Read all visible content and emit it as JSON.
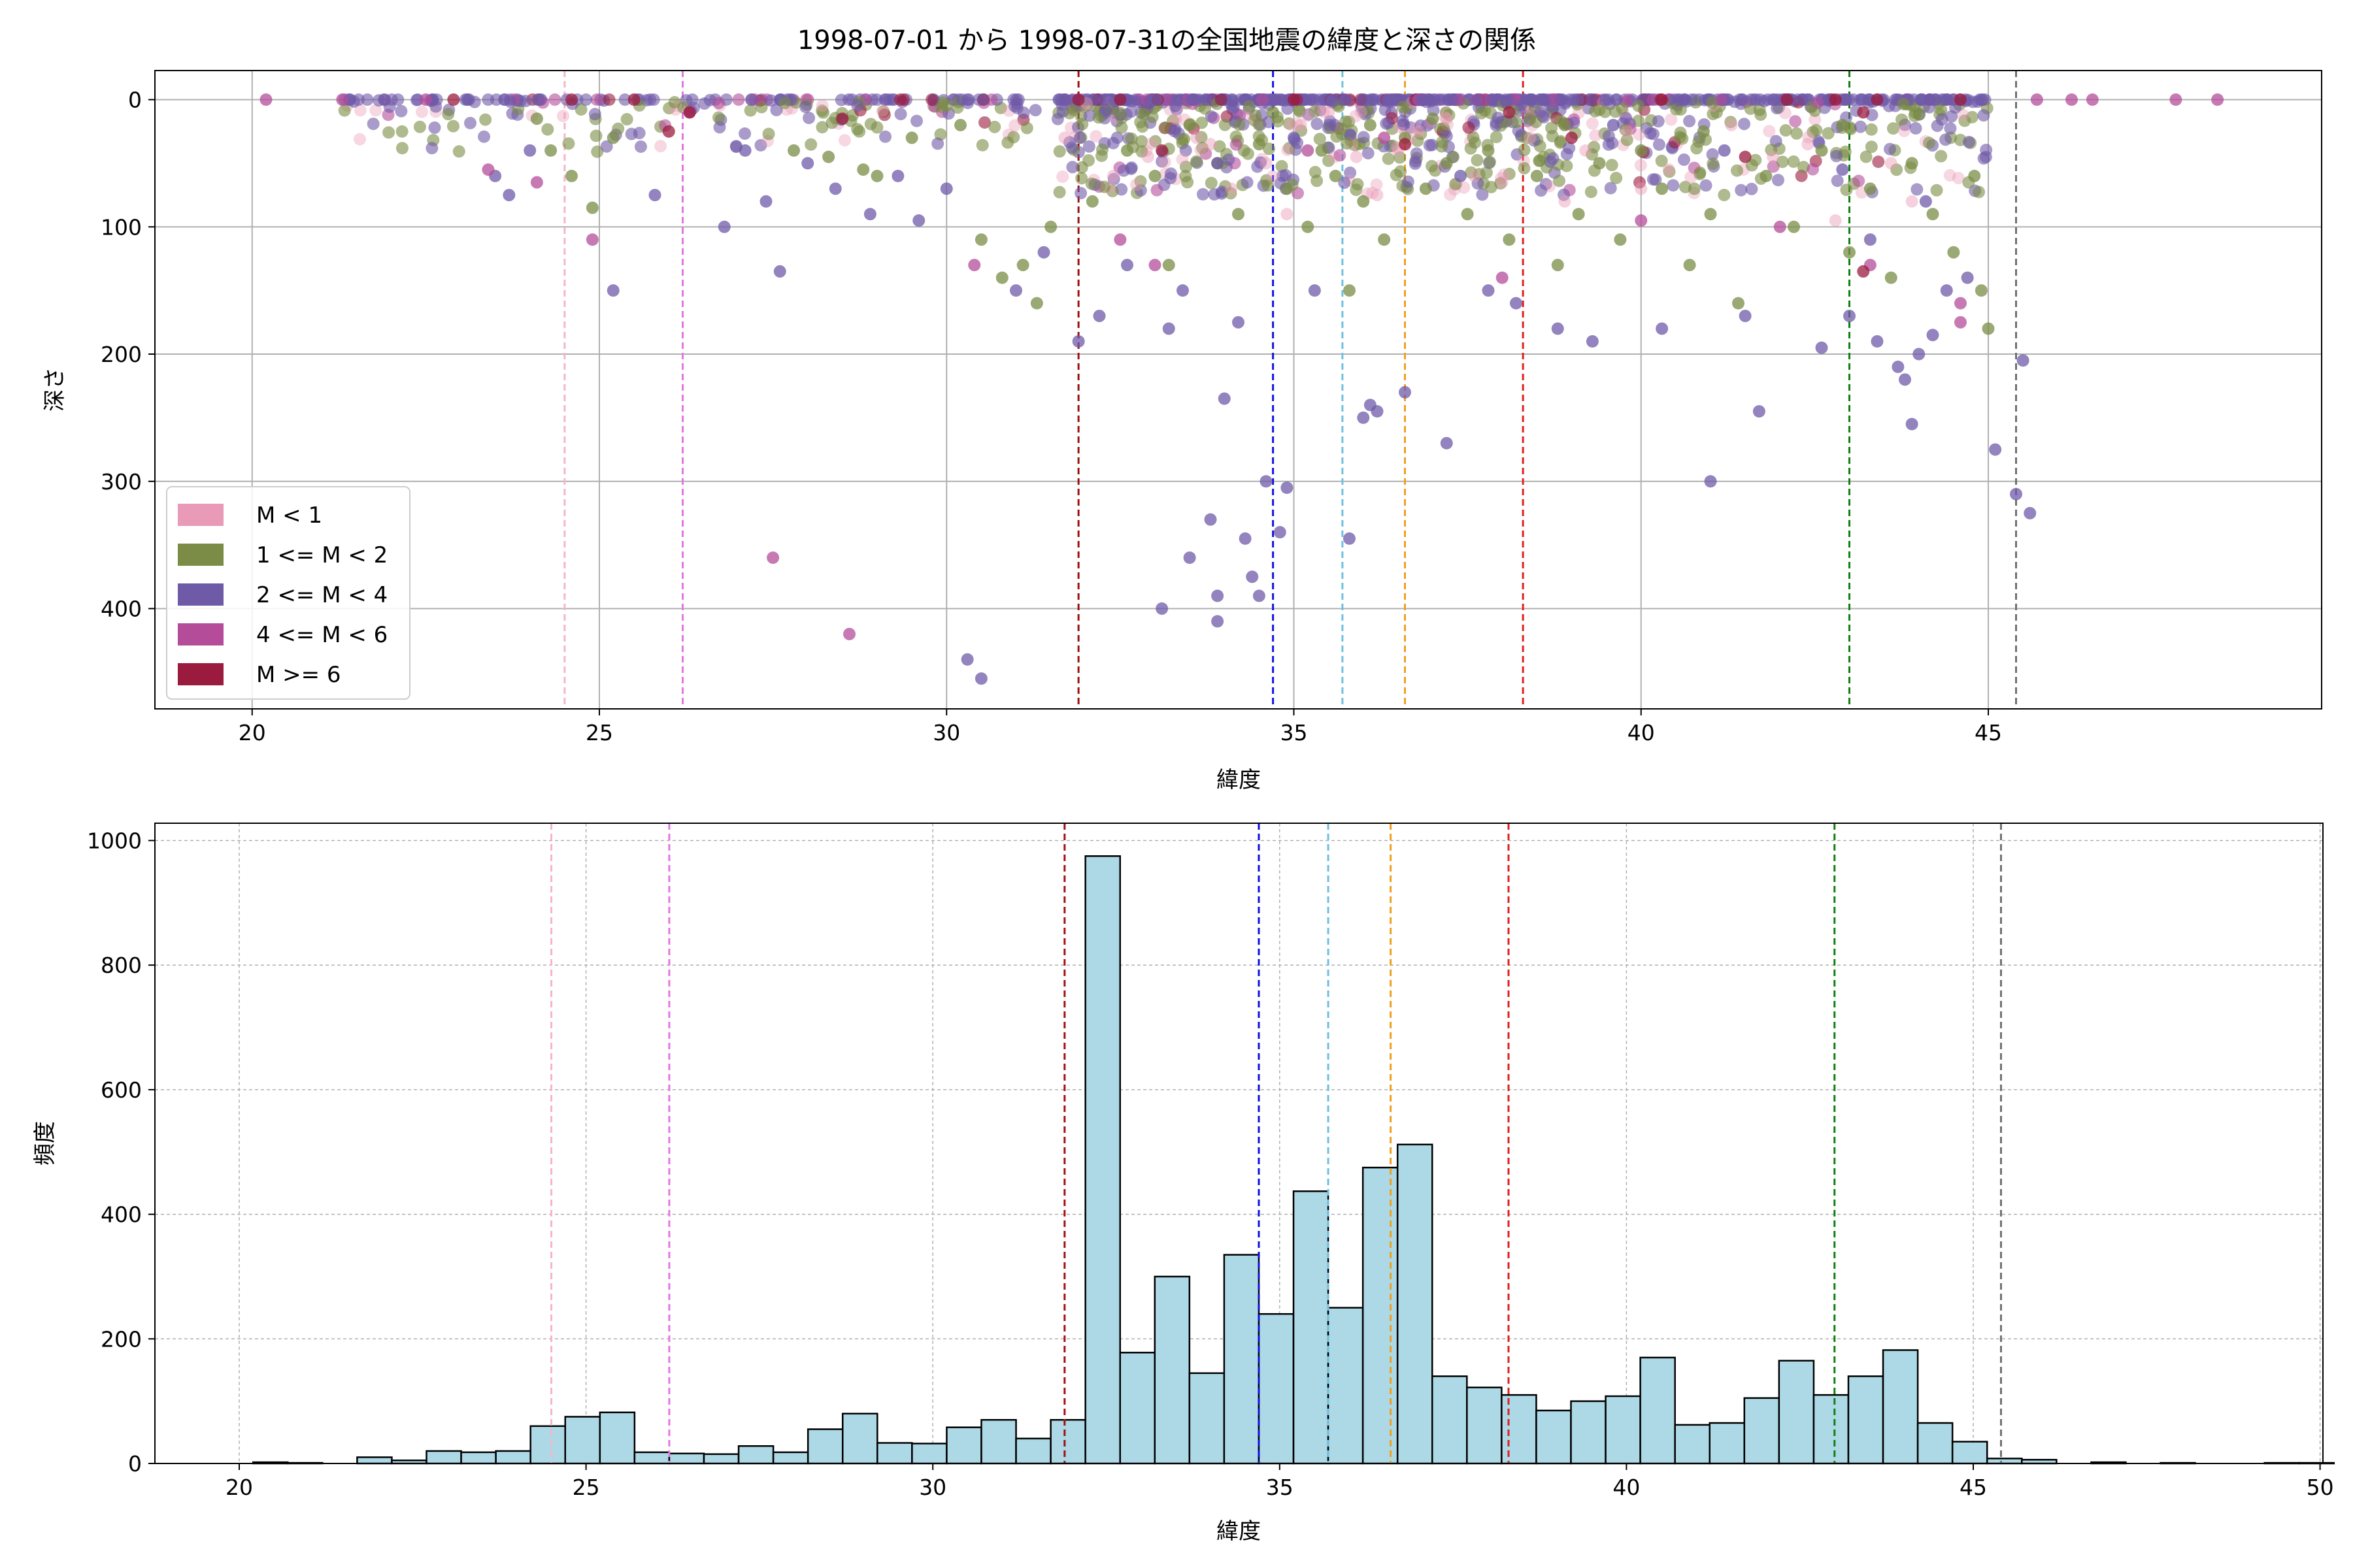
{
  "chart_data": [
    {
      "type": "scatter",
      "title": "1998-07-01 から 1998-07-31の全国地震の緯度と深さの関係",
      "xlabel": "緯度",
      "ylabel": "深さ",
      "xlim": [
        18.6,
        49.8
      ],
      "ylim": [
        0,
        480
      ],
      "y_inverted": true,
      "xticks": [
        20,
        25,
        30,
        35,
        40,
        45
      ],
      "yticks": [
        0,
        100,
        200,
        300,
        400
      ],
      "grid": true,
      "legend_position": "lower-left",
      "legend": [
        {
          "label": "M < 1",
          "color": "#e89ab6"
        },
        {
          "label": "1 <= M < 2",
          "color": "#7a8c45"
        },
        {
          "label": "2 <= M < 4",
          "color": "#6f5aa8"
        },
        {
          "label": "4 <= M < 6",
          "color": "#b44c9a"
        },
        {
          "label": "M >= 6",
          "color": "#9b1b3e"
        }
      ],
      "vlines": [
        {
          "x": 24.5,
          "color": "#f4b6c8"
        },
        {
          "x": 26.2,
          "color": "#e377e0"
        },
        {
          "x": 31.9,
          "color": "#a01010"
        },
        {
          "x": 34.7,
          "color": "#1010e0"
        },
        {
          "x": 35.7,
          "color": "#6fc0e0"
        },
        {
          "x": 36.6,
          "color": "#f0a020"
        },
        {
          "x": 38.3,
          "color": "#e02020"
        },
        {
          "x": 43.0,
          "color": "#108010"
        },
        {
          "x": 45.4,
          "color": "#707070"
        }
      ],
      "series": [
        {
          "name": "M < 1",
          "points": [
            [
              33.3,
              15
            ],
            [
              33.8,
              35
            ],
            [
              34.6,
              50
            ],
            [
              35.1,
              20
            ],
            [
              35.9,
              45
            ],
            [
              36.8,
              25
            ],
            [
              37.6,
              60
            ],
            [
              38.4,
              30
            ],
            [
              39.2,
              40
            ],
            [
              40.4,
              55
            ],
            [
              41.3,
              20
            ],
            [
              42.4,
              35
            ],
            [
              43.6,
              50
            ],
            [
              32.4,
              60
            ],
            [
              34.1,
              70
            ],
            [
              36.2,
              75
            ],
            [
              38.9,
              80
            ],
            [
              32.9,
              45
            ],
            [
              35.5,
              10
            ],
            [
              37.2,
              15
            ],
            [
              39.8,
              25
            ],
            [
              41.9,
              45
            ],
            [
              43.9,
              80
            ],
            [
              33.6,
              30
            ],
            [
              36.5,
              40
            ],
            [
              40.0,
              70
            ],
            [
              42.8,
              95
            ],
            [
              31.7,
              30
            ],
            [
              34.9,
              90
            ],
            [
              38.0,
              65
            ]
          ]
        },
        {
          "name": "1 <= M < 2",
          "points": [
            [
              24.1,
              15
            ],
            [
              24.3,
              40
            ],
            [
              24.6,
              60
            ],
            [
              24.9,
              85
            ],
            [
              25.2,
              30
            ],
            [
              28.3,
              45
            ],
            [
              28.8,
              55
            ],
            [
              29.5,
              30
            ],
            [
              30.5,
              110
            ],
            [
              30.8,
              140
            ],
            [
              31.1,
              130
            ],
            [
              31.3,
              160
            ],
            [
              31.5,
              100
            ],
            [
              32.1,
              80
            ],
            [
              32.6,
              40
            ],
            [
              33.0,
              60
            ],
            [
              33.5,
              20
            ],
            [
              33.9,
              50
            ],
            [
              34.2,
              90
            ],
            [
              34.5,
              35
            ],
            [
              34.9,
              70
            ],
            [
              35.2,
              100
            ],
            [
              35.4,
              40
            ],
            [
              35.6,
              60
            ],
            [
              35.8,
              150
            ],
            [
              36.0,
              80
            ],
            [
              36.3,
              110
            ],
            [
              36.6,
              30
            ],
            [
              36.9,
              70
            ],
            [
              37.2,
              50
            ],
            [
              37.5,
              90
            ],
            [
              37.8,
              40
            ],
            [
              38.1,
              110
            ],
            [
              38.5,
              60
            ],
            [
              38.8,
              130
            ],
            [
              39.1,
              90
            ],
            [
              39.4,
              50
            ],
            [
              39.7,
              110
            ],
            [
              40.0,
              40
            ],
            [
              40.3,
              70
            ],
            [
              40.7,
              130
            ],
            [
              41.0,
              90
            ],
            [
              41.4,
              160
            ],
            [
              41.8,
              60
            ],
            [
              42.2,
              100
            ],
            [
              42.6,
              40
            ],
            [
              43.0,
              120
            ],
            [
              43.3,
              70
            ],
            [
              43.6,
              140
            ],
            [
              43.9,
              50
            ],
            [
              44.2,
              90
            ],
            [
              44.5,
              120
            ],
            [
              44.8,
              60
            ],
            [
              45.0,
              180
            ],
            [
              44.9,
              150
            ],
            [
              33.2,
              130
            ],
            [
              34.7,
              10
            ],
            [
              36.1,
              20
            ],
            [
              37.0,
              15
            ],
            [
              38.9,
              20
            ],
            [
              40.9,
              25
            ],
            [
              42.9,
              20
            ],
            [
              30.2,
              20
            ],
            [
              29.0,
              60
            ],
            [
              27.8,
              40
            ]
          ]
        },
        {
          "name": "2 <= M < 4",
          "points": [
            [
              21.4,
              0
            ],
            [
              21.9,
              0
            ],
            [
              22.6,
              0
            ],
            [
              23.1,
              0
            ],
            [
              23.5,
              60
            ],
            [
              23.7,
              75
            ],
            [
              24.0,
              40
            ],
            [
              25.2,
              150
            ],
            [
              25.8,
              75
            ],
            [
              26.8,
              100
            ],
            [
              27.1,
              40
            ],
            [
              27.4,
              80
            ],
            [
              27.6,
              135
            ],
            [
              28.0,
              50
            ],
            [
              28.4,
              70
            ],
            [
              28.9,
              90
            ],
            [
              29.3,
              60
            ],
            [
              29.6,
              95
            ],
            [
              30.0,
              70
            ],
            [
              30.3,
              440
            ],
            [
              30.5,
              455
            ],
            [
              31.0,
              150
            ],
            [
              31.4,
              120
            ],
            [
              32.6,
              130
            ],
            [
              33.1,
              400
            ],
            [
              33.2,
              180
            ],
            [
              33.4,
              150
            ],
            [
              33.5,
              360
            ],
            [
              33.8,
              330
            ],
            [
              33.9,
              410
            ],
            [
              33.9,
              390
            ],
            [
              34.0,
              235
            ],
            [
              34.2,
              175
            ],
            [
              34.3,
              345
            ],
            [
              34.4,
              375
            ],
            [
              34.5,
              390
            ],
            [
              34.6,
              300
            ],
            [
              34.8,
              340
            ],
            [
              34.9,
              305
            ],
            [
              35.3,
              150
            ],
            [
              35.8,
              345
            ],
            [
              36.0,
              250
            ],
            [
              36.1,
              240
            ],
            [
              36.2,
              245
            ],
            [
              36.6,
              230
            ],
            [
              37.2,
              270
            ],
            [
              37.8,
              150
            ],
            [
              38.2,
              160
            ],
            [
              38.8,
              180
            ],
            [
              39.3,
              190
            ],
            [
              40.3,
              180
            ],
            [
              41.0,
              300
            ],
            [
              41.5,
              170
            ],
            [
              41.7,
              245
            ],
            [
              42.6,
              195
            ],
            [
              43.0,
              170
            ],
            [
              43.4,
              190
            ],
            [
              43.7,
              210
            ],
            [
              43.8,
              220
            ],
            [
              43.9,
              255
            ],
            [
              44.0,
              200
            ],
            [
              44.2,
              185
            ],
            [
              44.4,
              150
            ],
            [
              44.7,
              140
            ],
            [
              45.1,
              275
            ],
            [
              45.4,
              310
            ],
            [
              45.5,
              205
            ],
            [
              45.6,
              325
            ],
            [
              33.9,
              50
            ],
            [
              35.0,
              30
            ],
            [
              37.4,
              60
            ],
            [
              39.6,
              20
            ],
            [
              41.2,
              40
            ],
            [
              42.9,
              55
            ],
            [
              43.3,
              110
            ],
            [
              44.1,
              80
            ],
            [
              31.9,
              190
            ],
            [
              32.2,
              170
            ]
          ]
        },
        {
          "name": "4 <= M < 6",
          "points": [
            [
              20.2,
              0
            ],
            [
              21.3,
              0
            ],
            [
              22.5,
              0
            ],
            [
              23.4,
              55
            ],
            [
              24.1,
              65
            ],
            [
              24.9,
              110
            ],
            [
              26.3,
              10
            ],
            [
              27.5,
              360
            ],
            [
              28.6,
              420
            ],
            [
              30.4,
              130
            ],
            [
              32.5,
              110
            ],
            [
              33.0,
              130
            ],
            [
              35.2,
              40
            ],
            [
              36.3,
              30
            ],
            [
              38.0,
              140
            ],
            [
              40.0,
              95
            ],
            [
              42.0,
              100
            ],
            [
              43.3,
              130
            ],
            [
              44.6,
              160
            ],
            [
              44.6,
              175
            ],
            [
              46.2,
              0
            ],
            [
              46.5,
              0
            ],
            [
              47.7,
              0
            ],
            [
              48.3,
              0
            ],
            [
              45.7,
              0
            ]
          ]
        },
        {
          "name": "M >= 6",
          "points": [
            [
              22.9,
              0
            ],
            [
              24.6,
              0
            ],
            [
              25.5,
              0
            ],
            [
              26.0,
              25
            ],
            [
              26.3,
              10
            ],
            [
              28.5,
              15
            ],
            [
              31.9,
              0
            ],
            [
              32.5,
              0
            ],
            [
              33.1,
              40
            ],
            [
              35.0,
              0
            ],
            [
              36.6,
              35
            ],
            [
              38.1,
              10
            ],
            [
              40.3,
              0
            ],
            [
              42.1,
              0
            ],
            [
              42.8,
              0
            ],
            [
              43.2,
              10
            ],
            [
              43.4,
              0
            ],
            [
              43.2,
              135
            ],
            [
              44.6,
              0
            ],
            [
              41.5,
              45
            ],
            [
              39.0,
              30
            ]
          ]
        }
      ]
    },
    {
      "type": "bar",
      "title": "",
      "xlabel": "緯度",
      "ylabel": "頻度",
      "xlim": [
        18.6,
        50.2
      ],
      "ylim": [
        0,
        1030
      ],
      "xticks": [
        20,
        25,
        30,
        35,
        40,
        45,
        50
      ],
      "yticks": [
        0,
        200,
        400,
        600,
        800,
        1000
      ],
      "grid": true,
      "bar_color": "#add8e6",
      "bin_start": 20.2,
      "bin_width": 0.5,
      "values": [
        2,
        1,
        0,
        10,
        5,
        20,
        18,
        20,
        60,
        75,
        82,
        18,
        16,
        15,
        28,
        18,
        55,
        80,
        33,
        32,
        58,
        70,
        40,
        70,
        975,
        178,
        300,
        145,
        335,
        240,
        437,
        250,
        475,
        512,
        140,
        122,
        110,
        85,
        100,
        108,
        170,
        62,
        65,
        105,
        165,
        110,
        140,
        182,
        65,
        35,
        8,
        6,
        0,
        2,
        0,
        1,
        0,
        0,
        1,
        1,
        0
      ]
    }
  ]
}
